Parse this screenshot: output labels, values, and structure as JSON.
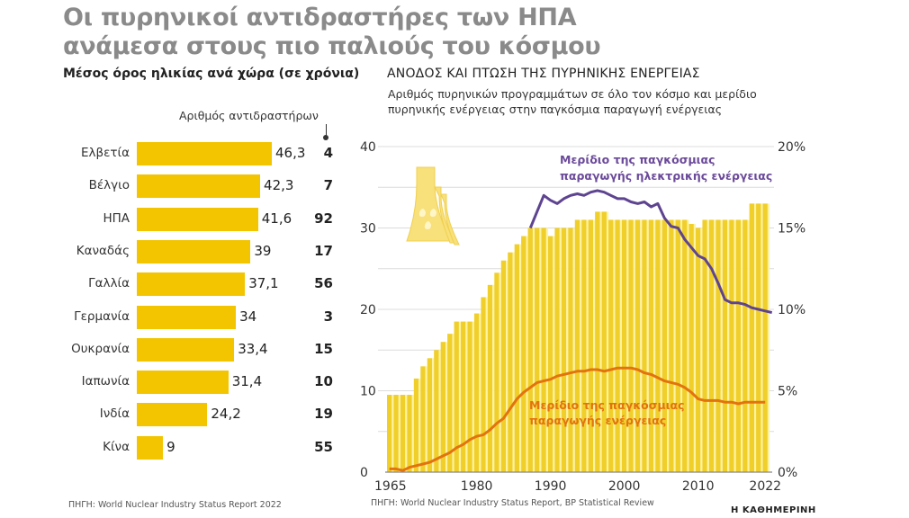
{
  "title_line1": "Οι πυρηνικοί αντιδραστήρες των ΗΠΑ",
  "title_line2": "ανάμεσα στους πιο παλιούς του κόσμου",
  "left_panel": {
    "subtitle": "Μέσος όρος ηλικίας ανά χώρα (σε χρόνια)",
    "count_header": "Αριθμός αντιδραστήρων",
    "source": "ΠΗΓΗ: World Nuclear Industry Status Report 2022"
  },
  "right_panel": {
    "title": "ΑΝΟΔΟΣ ΚΑΙ ΠΤΩΣΗ ΤΗΣ ΠΥΡΗΝΙΚΗΣ ΕΝΕΡΓΕΙΑΣ",
    "subtitle_line1": "Αριθμός πυρηνικών προγραμμάτων σε όλο τον κόσμο και μερίδιο",
    "subtitle_line2": "πυρηνικής ενέργειας στην παγκόσμια παραγωγή ενέργειας",
    "source": "ΠΗΓΗ: World Nuclear Industry Status Report, BP Statistical Review",
    "icon": "nuclear-plant-icon"
  },
  "logo": "Η ΚΑΘΗΜΕΡΙΝΗ",
  "colors": {
    "bar_yellow": "#f2c500",
    "chart_bar": "#f0cf2a",
    "bar_gap": "#fff3a0",
    "purple_line": "#5e4490",
    "orange_line": "#e2730f",
    "title_gray": "#8a8a8a"
  },
  "chart_data": [
    {
      "type": "bar",
      "orientation": "horizontal",
      "title": "Μέσος όρος ηλικίας ανά χώρα (σε χρόνια)",
      "categories": [
        "Ελβετία",
        "Βέλγιο",
        "ΗΠΑ",
        "Καναδάς",
        "Γαλλία",
        "Γερμανία",
        "Ουκρανία",
        "Ιαπωνία",
        "Ινδία",
        "Κίνα"
      ],
      "values": [
        46.3,
        42.3,
        41.6,
        39,
        37.1,
        34,
        33.4,
        31.4,
        24.2,
        9
      ],
      "value_labels": [
        "46,3",
        "42,3",
        "41,6",
        "39",
        "37,1",
        "34",
        "33,4",
        "31,4",
        "24,2",
        "9"
      ],
      "series_extra": {
        "name": "Αριθμός αντιδραστήρων",
        "values": [
          "4",
          "7",
          "92",
          "17",
          "56",
          "3",
          "15",
          "10",
          "19",
          "55"
        ]
      },
      "xlim": [
        0,
        50
      ]
    },
    {
      "type": "bar",
      "title": "ΑΝΟΔΟΣ ΚΑΙ ΠΤΩΣΗ ΤΗΣ ΠΥΡΗΝΙΚΗΣ ΕΝΕΡΓΕΙΑΣ",
      "x_tick_labels": [
        "1965",
        "1980",
        "1990",
        "2000",
        "2010",
        "2022"
      ],
      "x_tick_index": [
        0,
        13,
        24,
        35,
        46,
        56
      ],
      "ylim": [
        0,
        40
      ],
      "y_ticks": [
        "0",
        "10",
        "20",
        "30",
        "40"
      ],
      "y_tick_values": [
        0,
        10,
        20,
        30,
        40
      ],
      "y2lim": [
        0,
        20
      ],
      "y2_ticks": [
        "0%",
        "5%",
        "10%",
        "15%",
        "20%"
      ],
      "y2_tick_values": [
        0,
        5,
        10,
        15,
        20
      ],
      "grid": true,
      "bars": {
        "name": "Αριθμός πυρηνικών προγραμμάτων",
        "values": [
          9.5,
          9.5,
          9.5,
          9.5,
          11.5,
          13,
          14,
          15,
          16,
          17,
          18.5,
          18.5,
          18.5,
          19.5,
          21.5,
          23,
          24.5,
          26,
          27,
          28,
          29,
          30,
          30,
          30,
          29,
          30,
          30,
          30,
          31,
          31,
          31,
          32,
          32,
          31,
          31,
          31,
          31,
          31,
          31,
          31,
          31,
          31,
          31,
          31,
          31,
          30.5,
          30,
          31,
          31,
          31,
          31,
          31,
          31,
          31,
          33,
          33,
          33
        ]
      },
      "series": [
        {
          "name": "Μερίδιο της παγκόσμιας παραγωγής ηλεκτρικής ενέργειας",
          "axis": "right",
          "start_index": 21,
          "values": [
            15,
            16,
            17,
            16.7,
            16.5,
            16.8,
            17,
            17.1,
            17,
            17.2,
            17.3,
            17.2,
            17.0,
            16.8,
            16.8,
            16.6,
            16.5,
            16.6,
            16.3,
            16.5,
            15.6,
            15.1,
            15.0,
            14.3,
            13.8,
            13.3,
            13.1,
            12.5,
            11.6,
            10.6,
            10.4,
            10.4,
            10.3,
            10.1,
            10.0,
            9.9,
            9.8
          ]
        },
        {
          "name": "Μερίδιο της παγκόσμιας παραγωγής ενέργειας",
          "axis": "right",
          "start_index": 0,
          "values": [
            0.2,
            0.2,
            0.1,
            0.3,
            0.4,
            0.5,
            0.6,
            0.8,
            1.0,
            1.2,
            1.5,
            1.7,
            2.0,
            2.2,
            2.3,
            2.6,
            3.0,
            3.3,
            3.9,
            4.5,
            4.9,
            5.2,
            5.5,
            5.6,
            5.7,
            5.9,
            6.0,
            6.1,
            6.2,
            6.2,
            6.3,
            6.3,
            6.2,
            6.3,
            6.4,
            6.4,
            6.4,
            6.3,
            6.1,
            6.0,
            5.8,
            5.6,
            5.5,
            5.4,
            5.2,
            4.9,
            4.5,
            4.4,
            4.4,
            4.4,
            4.3,
            4.3,
            4.2,
            4.3,
            4.3,
            4.3,
            4.3
          ]
        }
      ],
      "annotations": {
        "purple_line1": "Μερίδιο της παγκόσμιας",
        "purple_line2": "παραγωγής ηλεκτρικής ενέργειας",
        "orange_line1": "Μερίδιο της παγκόσμιας",
        "orange_line2": "παραγωγής ενέργειας"
      }
    }
  ]
}
